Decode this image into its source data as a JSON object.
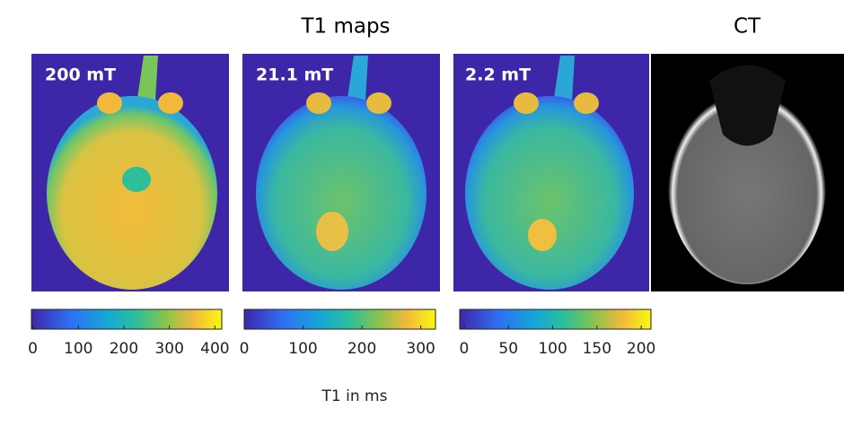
{
  "title": "T1 maps",
  "ct_label": "CT",
  "colorbar_label": "T1 in ms",
  "panels": [
    {
      "label": "200 mT",
      "colorbar": {
        "lim": [
          -3,
          415
        ],
        "ticks": [
          0,
          100,
          200,
          300,
          400
        ]
      }
    },
    {
      "label": "21.1 mT",
      "colorbar": {
        "lim": [
          0,
          325
        ],
        "ticks": [
          0,
          100,
          200,
          300
        ]
      }
    },
    {
      "label": "2.2 mT",
      "colorbar": {
        "lim": [
          -5,
          211
        ],
        "ticks": [
          0,
          50,
          100,
          150,
          200
        ]
      }
    }
  ]
}
